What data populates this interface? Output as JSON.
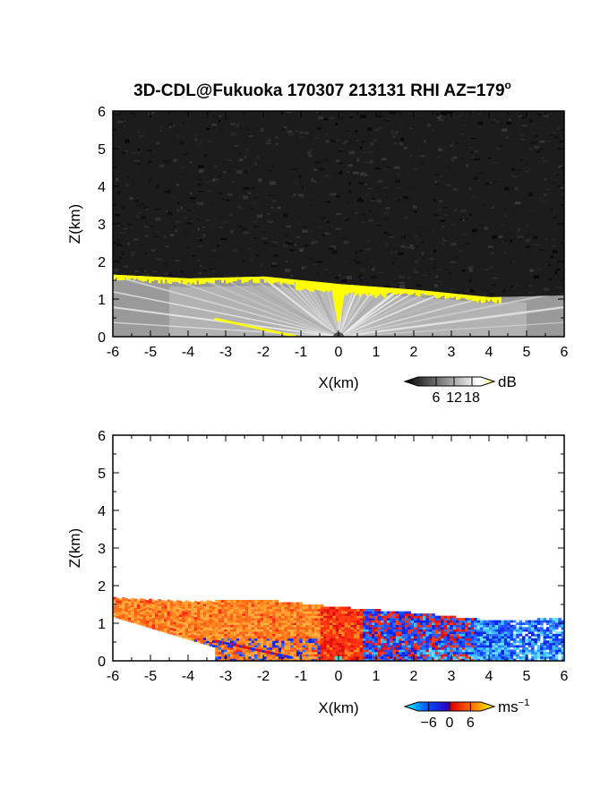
{
  "figure": {
    "title": "3D-CDL@Fukuoka 170307 213131 RHI AZ=179",
    "title_superscript": "o"
  },
  "chart_data": [
    {
      "type": "heatmap",
      "quantity": "backscatter intensity",
      "xlabel": "X(km)",
      "ylabel": "Z(km)",
      "xlim": [
        -6,
        6
      ],
      "ylim": [
        0,
        6
      ],
      "x_ticks": [
        "-6",
        "-5",
        "-4",
        "-3",
        "-2",
        "-1",
        "0",
        "1",
        "2",
        "3",
        "4",
        "5",
        "6"
      ],
      "y_ticks": [
        "0",
        "1",
        "2",
        "3",
        "4",
        "5",
        "6"
      ],
      "colorbar": {
        "unit": "dB",
        "tick_labels": [
          "6",
          "12",
          "18"
        ],
        "tick_values": [
          6,
          12,
          18
        ],
        "range": [
          0,
          21
        ],
        "colors": [
          "#000000",
          "#ffffff",
          "#ffff00"
        ]
      },
      "layer_top_km": [
        {
          "x": -6,
          "z": 1.65
        },
        {
          "x": -4,
          "z": 1.55
        },
        {
          "x": -2,
          "z": 1.6
        },
        {
          "x": 0,
          "z": 1.4
        },
        {
          "x": 2,
          "z": 1.25
        },
        {
          "x": 4,
          "z": 1.05
        },
        {
          "x": 6,
          "z": 1.1
        }
      ],
      "high_signal_band": {
        "color": "#ffff00",
        "value_db": 19
      }
    },
    {
      "type": "heatmap",
      "quantity": "Doppler velocity",
      "xlabel": "X(km)",
      "ylabel": "Z(km)",
      "xlim": [
        -6,
        6
      ],
      "ylim": [
        0,
        6
      ],
      "x_ticks": [
        "-6",
        "-5",
        "-4",
        "-3",
        "-2",
        "-1",
        "0",
        "1",
        "2",
        "3",
        "4",
        "5",
        "6"
      ],
      "y_ticks": [
        "0",
        "1",
        "2",
        "3",
        "4",
        "5",
        "6"
      ],
      "colorbar": {
        "unit": "ms",
        "unit_superscript": "−1",
        "tick_labels": [
          "−6",
          "0",
          "6"
        ],
        "tick_values": [
          -6,
          0,
          6
        ],
        "range": [
          -9,
          9
        ],
        "colors": [
          "#00ffff",
          "#0000ff",
          "#ff0000",
          "#ffff00"
        ]
      },
      "regions": [
        {
          "x_range": [
            -6,
            -0.5
          ],
          "velocity": 4.5,
          "color": "#ff9020"
        },
        {
          "x_range": [
            -1,
            1
          ],
          "velocity": 2.5,
          "color": "#ff4a10"
        },
        {
          "x_range": [
            0.5,
            4
          ],
          "velocity": -3,
          "color": "#1040ff"
        },
        {
          "x_range": [
            3.5,
            6
          ],
          "velocity": -5.5,
          "color": "#3ab0ff"
        }
      ]
    }
  ]
}
